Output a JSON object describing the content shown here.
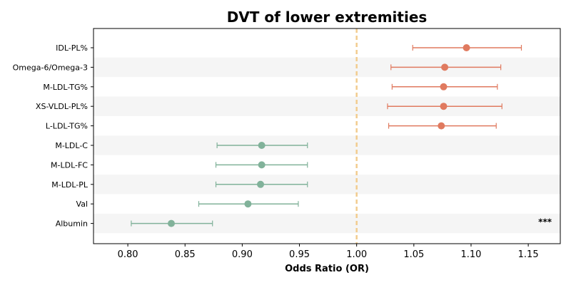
{
  "chart_data": {
    "type": "forest",
    "title": "DVT of lower extremities",
    "xlabel": "Odds Ratio (OR)",
    "ylabel": "",
    "xlim": [
      0.77,
      1.178
    ],
    "xticks": [
      0.8,
      0.85,
      0.9,
      0.95,
      1.0,
      1.05,
      1.1,
      1.15
    ],
    "reference_line": 1.0,
    "colors": {
      "positive": "#E07A5F",
      "negative": "#81B29A",
      "reference": "#F2CC8F",
      "band": "#F5F5F5"
    },
    "rows": [
      {
        "label": "IDL-PL%",
        "or": 1.096,
        "lower": 1.049,
        "upper": 1.144,
        "annotation": ""
      },
      {
        "label": "Omega-6/Omega-3",
        "or": 1.077,
        "lower": 1.03,
        "upper": 1.126,
        "annotation": ""
      },
      {
        "label": "M-LDL-TG%",
        "or": 1.076,
        "lower": 1.031,
        "upper": 1.123,
        "annotation": ""
      },
      {
        "label": "XS-VLDL-PL%",
        "or": 1.076,
        "lower": 1.027,
        "upper": 1.127,
        "annotation": ""
      },
      {
        "label": "L-LDL-TG%",
        "or": 1.074,
        "lower": 1.028,
        "upper": 1.122,
        "annotation": ""
      },
      {
        "label": "M-LDL-C",
        "or": 0.917,
        "lower": 0.878,
        "upper": 0.957,
        "annotation": ""
      },
      {
        "label": "M-LDL-FC",
        "or": 0.917,
        "lower": 0.877,
        "upper": 0.957,
        "annotation": ""
      },
      {
        "label": "M-LDL-PL",
        "or": 0.916,
        "lower": 0.877,
        "upper": 0.957,
        "annotation": ""
      },
      {
        "label": "Val",
        "or": 0.905,
        "lower": 0.862,
        "upper": 0.949,
        "annotation": ""
      },
      {
        "label": "Albumin",
        "or": 0.838,
        "lower": 0.803,
        "upper": 0.874,
        "annotation": "***"
      }
    ]
  }
}
